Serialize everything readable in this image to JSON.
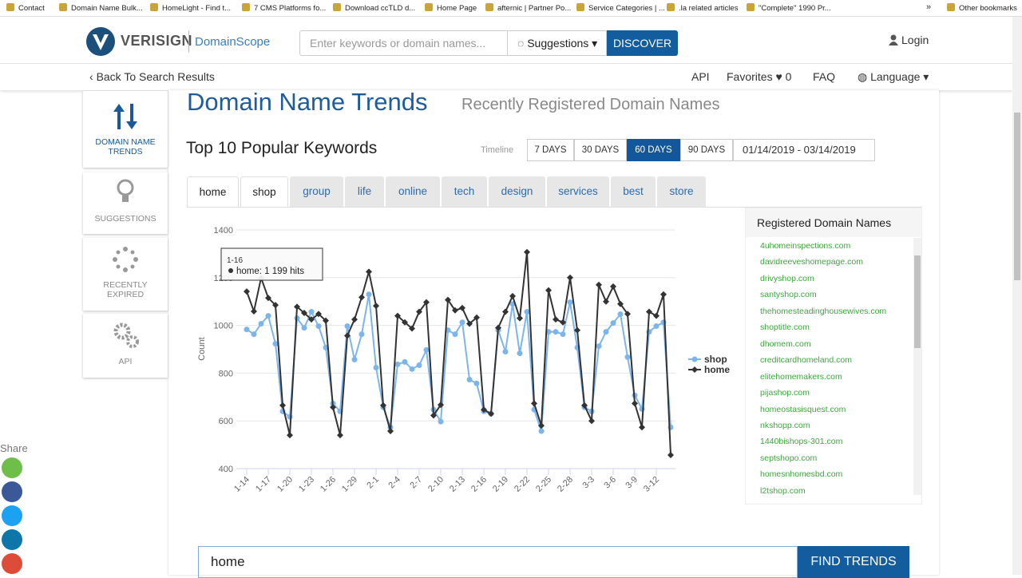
{
  "bookmarks": [
    "Contact",
    "Domain Name Bulk...",
    "HomeLight - Find t...",
    "7 CMS Platforms fo...",
    "Download ccTLD d...",
    "Home Page",
    "afternic | Partner Po...",
    "Service Categories | ...",
    ".la related articles",
    "\"Complete\" 1990 Pr...",
    "»",
    "Other bookmarks"
  ],
  "header": {
    "brand": "VERISIGN",
    "product": "DomainScope",
    "search_placeholder": "Enter keywords or domain names...",
    "suggestions": "Suggestions",
    "discover": "DISCOVER",
    "login": "Login"
  },
  "nav": {
    "back": "Back To Search Results",
    "api": "API",
    "favorites": "Favorites",
    "favorites_count": 0,
    "faq": "FAQ",
    "language": "Language"
  },
  "sidebar": [
    "DOMAIN NAME TRENDS",
    "SUGGESTIONS",
    "RECENTLY EXPIRED",
    "API"
  ],
  "page": {
    "title": "Domain Name Trends",
    "subtitle": "Recently Registered Domain Names",
    "section": "Top 10 Popular Keywords",
    "timeline_label": "Timeline",
    "timeline": [
      "7 DAYS",
      "30 DAYS",
      "60 DAYS",
      "90 DAYS"
    ],
    "active_timeline": "60 DAYS",
    "date_range": "01/14/2019 - 03/14/2019"
  },
  "tabs": [
    "home",
    "shop",
    "group",
    "life",
    "online",
    "tech",
    "design",
    "services",
    "best",
    "store"
  ],
  "active_tab": "shop",
  "domains_title": "Registered Domain Names",
  "domains": [
    "4uhomeinspections.com",
    "davidreeveshomepage.com",
    "drivyshop.com",
    "santyshop.com",
    "thehomesteadinghousewives.com",
    "shoptitle.com",
    "dhomem.com",
    "creditcardhomeland.com",
    "elitehomemakers.com",
    "pijashop.com",
    "homeostasisquest.com",
    "nkshopp.com",
    "1440bishops-301.com",
    "septshopo.com",
    "homesnhomesbd.com",
    "l2tshop.com"
  ],
  "share": "Share",
  "search_value": "home",
  "find_trends": "FIND TRENDS",
  "chart_data": {
    "type": "line",
    "y_label": "Count",
    "categories": [
      "1-14",
      null,
      null,
      "1-17",
      null,
      null,
      "1-20",
      null,
      null,
      "1-23",
      null,
      null,
      "1-26",
      null,
      null,
      "1-29",
      null,
      null,
      "2-1",
      null,
      null,
      "2-4",
      null,
      null,
      "2-7",
      null,
      null,
      "2-10",
      null,
      null,
      "2-13",
      null,
      null,
      "2-16",
      null,
      null,
      "2-19",
      null,
      null,
      "2-22",
      null,
      null,
      "2-25",
      null,
      null,
      "2-28",
      null,
      null,
      "3-3",
      null,
      null,
      "3-6",
      null,
      null,
      "3-9",
      null,
      null,
      "3-12",
      null,
      null
    ],
    "series": [
      {
        "name": "shop",
        "color": "#7cb5ec",
        "marker": "circle",
        "values": [
          983,
          963,
          1007,
          1040,
          923,
          640,
          617,
          1030,
          990,
          1057,
          997,
          907,
          673,
          640,
          997,
          857,
          963,
          1130,
          823,
          657,
          573,
          837,
          847,
          817,
          833,
          897,
          647,
          597,
          980,
          963,
          1013,
          773,
          757,
          640,
          630,
          980,
          890,
          1090,
          883,
          1057,
          647,
          557,
          973,
          973,
          963,
          1097,
          907,
          657,
          640,
          913,
          973,
          1010,
          1047,
          867,
          707,
          650,
          973,
          997,
          1013,
          573
        ]
      },
      {
        "name": "home",
        "color": "#333333",
        "marker": "diamond",
        "values": [
          1142,
          1059,
          1199,
          1115,
          1085,
          665,
          540,
          1078,
          1052,
          1025,
          1048,
          1020,
          657,
          540,
          957,
          1025,
          1118,
          1225,
          1082,
          665,
          557,
          1040,
          1013,
          987,
          1057,
          1097,
          623,
          667,
          1107,
          1063,
          1073,
          1007,
          1033,
          647,
          630,
          990,
          1057,
          1123,
          1030,
          1307,
          673,
          580,
          1147,
          1025,
          1013,
          1200,
          980,
          665,
          600,
          1170,
          1100,
          1163,
          1090,
          1048,
          673,
          573,
          1057,
          1040,
          1130,
          457
        ]
      }
    ],
    "ylim": [
      400,
      1400
    ],
    "yticks": [
      400,
      600,
      800,
      1000,
      1200,
      1400
    ],
    "grid": true,
    "legend": "right",
    "tooltip": {
      "title": "1-16",
      "text": "home: 1 199 hits"
    }
  }
}
